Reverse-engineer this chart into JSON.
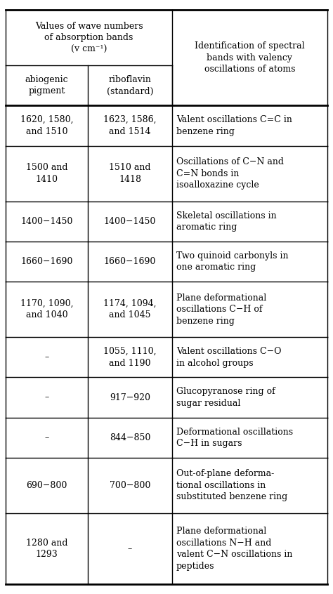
{
  "header_left": "Values of wave numbers\nof absorption bands\n(v cm⁻¹)",
  "header_right": "Identification of spectral\nbands with valency\noscillations of atoms",
  "sub_left": "abiogenic\npigment",
  "sub_right": "riboflavin\n(standard)",
  "rows": [
    [
      "1620, 1580,\nand 1510",
      "1623, 1586,\nand 1514",
      "Valent oscillations C=C in\nbenzene ring"
    ],
    [
      "1500 and\n1410",
      "1510 and\n1418",
      "Oscillations of C−N and\nC=N bonds in\nisoalloxazine cycle"
    ],
    [
      "1400−1450",
      "1400−1450",
      "Skeletal oscillations in\naromatic ring"
    ],
    [
      "1660−1690",
      "1660−1690",
      "Two quinoid carbonyls in\none aromatic ring"
    ],
    [
      "1170, 1090,\nand 1040",
      "1174, 1094,\nand 1045",
      "Plane deformational\noscillations C−H of\nbenzene ring"
    ],
    [
      "–",
      "1055, 1110,\nand 1190",
      "Valent oscillations C−O\nin alcohol groups"
    ],
    [
      "–",
      "917−920",
      "Glucopyranose ring of\nsugar residual"
    ],
    [
      "–",
      "844−850",
      "Deformational oscillations\nC−H in sugars"
    ],
    [
      "690−800",
      "700−800",
      "Out-of-plane deforma-\ntional oscillations in\nsubstituted benzene ring"
    ],
    [
      "1280 and\n1293",
      "–",
      "Plane deformational\noscillations N−H and\nvalent C−N oscillations in\npeptides"
    ]
  ],
  "bg_color": "#ffffff",
  "line_color": "#000000",
  "font_size": 9.0,
  "font_family": "DejaVu Serif"
}
